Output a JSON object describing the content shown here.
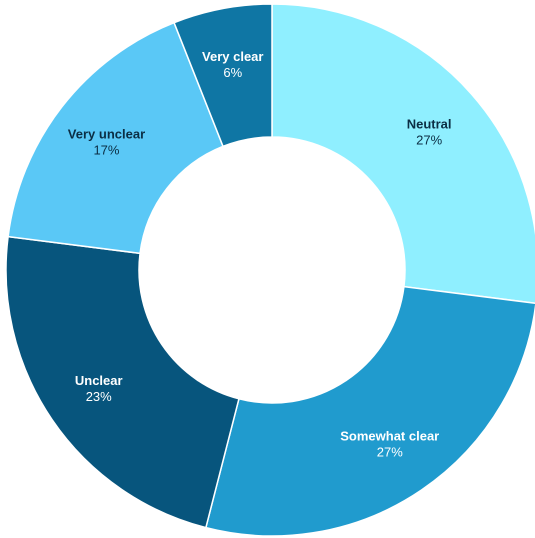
{
  "chart_data": {
    "type": "pie",
    "donut": true,
    "title": "",
    "slices": [
      {
        "label": "Neutral",
        "value": 27,
        "value_label": "27%",
        "color": "#8fefff",
        "text_color": "#0b2e44"
      },
      {
        "label": "Somewhat clear",
        "value": 27,
        "value_label": "27%",
        "color": "#209bce",
        "text_color": "#ffffff"
      },
      {
        "label": "Unclear",
        "value": 23,
        "value_label": "23%",
        "color": "#07557d",
        "text_color": "#ffffff"
      },
      {
        "label": "Very unclear",
        "value": 17,
        "value_label": "17%",
        "color": "#5ac8f6",
        "text_color": "#0b2e44"
      },
      {
        "label": "Very clear",
        "value": 6,
        "value_label": "6%",
        "color": "#0f76a4",
        "text_color": "#ffffff"
      }
    ]
  }
}
